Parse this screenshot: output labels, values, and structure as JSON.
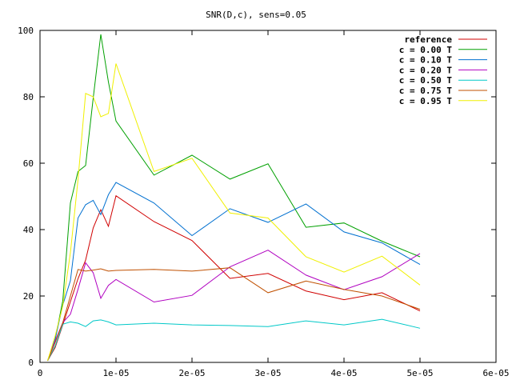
{
  "chart_data": {
    "type": "line",
    "title": "SNR(D,c), sens=0.05",
    "xlabel": "",
    "ylabel": "",
    "xlim": [
      0,
      6e-05
    ],
    "ylim": [
      0,
      100
    ],
    "xticks": [
      0,
      1e-05,
      2e-05,
      3e-05,
      4e-05,
      5e-05,
      6e-05
    ],
    "xtick_labels": [
      "0",
      "1e-05",
      "2e-05",
      "3e-05",
      "4e-05",
      "5e-05",
      "6e-05"
    ],
    "yticks": [
      0,
      20,
      40,
      60,
      80,
      100
    ],
    "ytick_labels": [
      "0",
      "20",
      "40",
      "60",
      "80",
      "100"
    ],
    "grid": false,
    "legend_position": "top-right",
    "x": [
      1e-06,
      2e-06,
      3e-06,
      4e-06,
      5e-06,
      6e-06,
      7e-06,
      8e-06,
      9e-06,
      1e-05,
      1.5e-05,
      2e-05,
      2.5e-05,
      3e-05,
      3.5e-05,
      4e-05,
      4.5e-05,
      5e-05
    ],
    "series": [
      {
        "name": "reference",
        "color": "#d00000",
        "values": [
          0.5,
          4.5,
          11.3,
          18.3,
          25.2,
          30.8,
          40.5,
          46.0,
          41.0,
          50.2,
          42.4,
          36.7,
          25.3,
          26.8,
          21.5,
          18.9,
          21.0,
          15.5
        ]
      },
      {
        "name": "c = 0.00 T",
        "color": "#00a000",
        "values": [
          0.5,
          7.0,
          18.6,
          48.0,
          57.5,
          59.3,
          79.6,
          98.8,
          84.5,
          72.7,
          56.4,
          62.4,
          55.2,
          59.8,
          40.7,
          42.0,
          36.5,
          31.8
        ]
      },
      {
        "name": "c = 0.10 T",
        "color": "#0070d0",
        "values": [
          0.5,
          7.0,
          17.3,
          24.6,
          43.5,
          47.5,
          48.8,
          44.5,
          50.5,
          54.2,
          48.0,
          38.2,
          46.3,
          42.2,
          47.7,
          39.3,
          36.0,
          29.5
        ]
      },
      {
        "name": "c = 0.20 T",
        "color": "#b000c0",
        "values": [
          0.5,
          6.5,
          12.0,
          14.5,
          22.0,
          30.0,
          27.0,
          19.3,
          23.2,
          25.0,
          18.2,
          20.2,
          28.8,
          33.8,
          26.3,
          21.9,
          25.8,
          32.8
        ]
      },
      {
        "name": "c = 0.50 T",
        "color": "#00c8c8",
        "values": [
          0.5,
          5.0,
          11.5,
          12.2,
          11.8,
          10.8,
          12.5,
          12.8,
          12.2,
          11.3,
          11.8,
          11.3,
          11.1,
          10.8,
          12.5,
          11.3,
          13.0,
          10.3
        ]
      },
      {
        "name": "c = 0.75 T",
        "color": "#c05000",
        "values": [
          0.5,
          6.0,
          12.0,
          20.0,
          28.0,
          27.5,
          27.8,
          28.2,
          27.5,
          27.7,
          28.0,
          27.5,
          28.5,
          21.0,
          24.5,
          22.0,
          20.0,
          16.0
        ]
      },
      {
        "name": "c = 0.95 T",
        "color": "#f0f000",
        "values": [
          0.5,
          8.0,
          17.0,
          33.0,
          55.0,
          81.0,
          80.0,
          74.0,
          75.0,
          90.0,
          57.5,
          61.5,
          45.0,
          43.5,
          31.8,
          27.2,
          32.0,
          23.3
        ]
      }
    ]
  }
}
